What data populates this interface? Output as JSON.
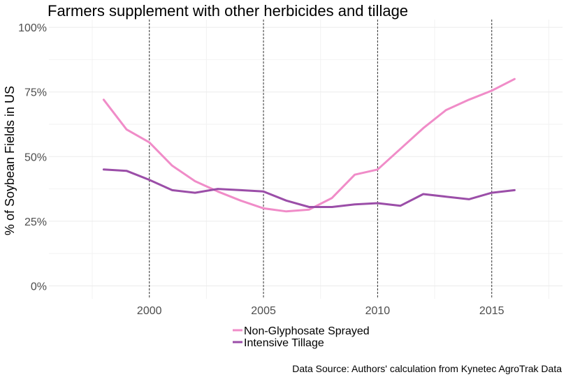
{
  "chart_data": {
    "type": "line",
    "title": "Farmers supplement with other herbicides and tillage",
    "xlabel": "",
    "ylabel": "% of Soybean Fields in US",
    "caption": "Data Source: Authors' calculation from Kynetec AgroTrak Data",
    "x": [
      1998,
      1999,
      2000,
      2001,
      2002,
      2003,
      2004,
      2005,
      2006,
      2007,
      2008,
      2009,
      2010,
      2011,
      2012,
      2013,
      2014,
      2015,
      2016
    ],
    "xlim": [
      1995.6,
      2018.1
    ],
    "ylim": [
      -0.05,
      1.03
    ],
    "x_ticks": [
      2000,
      2005,
      2010,
      2015
    ],
    "x_tick_labels": [
      "2000",
      "2005",
      "2010",
      "2015"
    ],
    "y_ticks": [
      0,
      0.25,
      0.5,
      0.75,
      1.0
    ],
    "y_tick_labels": [
      "0%",
      "25%",
      "50%",
      "75%",
      "100%"
    ],
    "vertical_reference_lines": [
      2000,
      2005,
      2010,
      2015
    ],
    "grid": true,
    "legend_position": "bottom",
    "series": [
      {
        "name": "Non-Glyphosate Sprayed",
        "color": "#f08cc8",
        "values": [
          0.72,
          0.605,
          0.555,
          0.465,
          0.405,
          0.365,
          0.33,
          0.3,
          0.288,
          0.295,
          0.34,
          0.43,
          0.45,
          0.53,
          0.61,
          0.68,
          0.72,
          0.755,
          0.8
        ]
      },
      {
        "name": "Intensive Tillage",
        "color": "#9b4ea8",
        "values": [
          0.45,
          0.445,
          0.41,
          0.37,
          0.36,
          0.375,
          0.37,
          0.365,
          0.33,
          0.305,
          0.305,
          0.315,
          0.32,
          0.31,
          0.355,
          0.345,
          0.335,
          0.36,
          0.37
        ]
      }
    ]
  }
}
